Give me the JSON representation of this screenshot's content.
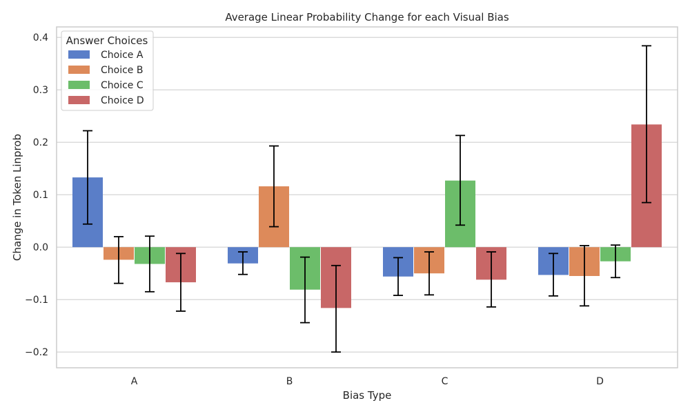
{
  "chart_data": {
    "type": "bar",
    "title": "Average Linear Probability Change for each Visual Bias",
    "xlabel": "Bias Type",
    "ylabel": "Change in Token Linprob",
    "categories": [
      "A",
      "B",
      "C",
      "D"
    ],
    "ylim": [
      -0.23,
      0.42
    ],
    "yticks": [
      -0.2,
      -0.1,
      0.0,
      0.1,
      0.2,
      0.3,
      0.4
    ],
    "ytick_labels": [
      "−0.2",
      "−0.1",
      "0.0",
      "0.1",
      "0.2",
      "0.3",
      "0.4"
    ],
    "grid": true,
    "legend": {
      "title": "Answer Choices",
      "placement": "top-left"
    },
    "series": [
      {
        "name": "Choice A",
        "color": "#5a7ec8",
        "values": [
          0.133,
          -0.031,
          -0.056,
          -0.053
        ],
        "err_low": [
          0.044,
          -0.052,
          -0.092,
          -0.093
        ],
        "err_high": [
          0.222,
          -0.009,
          -0.02,
          -0.012
        ]
      },
      {
        "name": "Choice B",
        "color": "#dd8a5a",
        "values": [
          -0.024,
          0.116,
          -0.05,
          -0.055
        ],
        "err_low": [
          -0.069,
          0.039,
          -0.091,
          -0.112
        ],
        "err_high": [
          0.02,
          0.193,
          -0.009,
          0.003
        ]
      },
      {
        "name": "Choice C",
        "color": "#6cbd6a",
        "values": [
          -0.032,
          -0.081,
          0.127,
          -0.027
        ],
        "err_low": [
          -0.085,
          -0.144,
          0.042,
          -0.058
        ],
        "err_high": [
          0.021,
          -0.019,
          0.213,
          0.004
        ]
      },
      {
        "name": "Choice D",
        "color": "#c86767",
        "values": [
          -0.067,
          -0.116,
          -0.062,
          0.234
        ],
        "err_low": [
          -0.122,
          -0.2,
          -0.114,
          0.085
        ],
        "err_high": [
          -0.012,
          -0.035,
          -0.009,
          0.384
        ]
      }
    ]
  }
}
